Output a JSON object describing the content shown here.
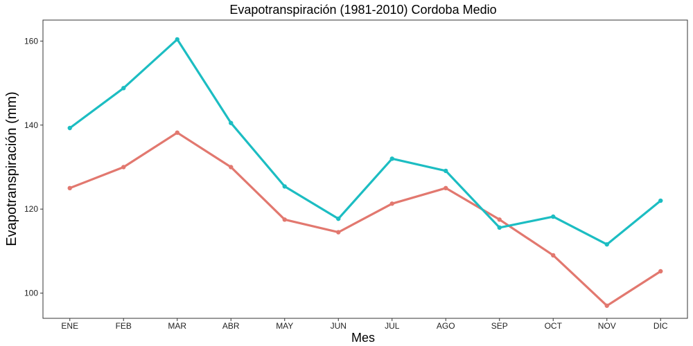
{
  "chart_data": {
    "type": "line",
    "title": "Evapotranspiración (1981-2010)  Cordoba Medio",
    "xlabel": "Mes",
    "ylabel": "Evapotranspiración (mm)",
    "categories": [
      "ENE",
      "FEB",
      "MAR",
      "ABR",
      "MAY",
      "JUN",
      "JUL",
      "AGO",
      "SEP",
      "OCT",
      "NOV",
      "DIC"
    ],
    "ylim": [
      94,
      165
    ],
    "yticks": [
      100,
      120,
      140,
      160
    ],
    "grid": false,
    "legend": "none",
    "series": [
      {
        "color": "#e2786f",
        "values": [
          125,
          130,
          138.2,
          130,
          117.5,
          114.5,
          121.3,
          125,
          117.5,
          109,
          97,
          105.2
        ]
      },
      {
        "color": "#1cbdc2",
        "values": [
          139.3,
          148.8,
          160.4,
          140.5,
          125.4,
          117.7,
          132,
          129.1,
          115.6,
          118.2,
          111.6,
          122
        ]
      }
    ]
  }
}
